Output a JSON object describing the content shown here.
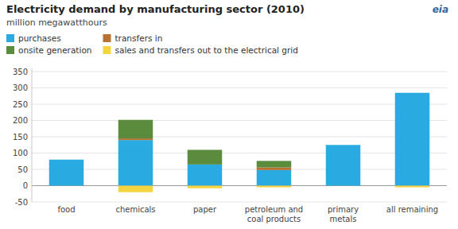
{
  "chart_data": {
    "type": "bar",
    "stacked": true,
    "title": "Electricity demand by manufacturing sector  (2010)",
    "subtitle": "million megawatthours",
    "annotations": [
      "eia"
    ],
    "categories": [
      "food",
      "chemicals",
      "paper",
      "petroleum and\ncoal products",
      "primary\nmetals",
      "all remaining"
    ],
    "series": [
      {
        "name": "purchases",
        "color": "#29ABE2",
        "values": [
          80,
          140,
          65,
          48,
          125,
          285
        ]
      },
      {
        "name": "transfers in",
        "color": "#B87333",
        "values": [
          0,
          5,
          0,
          8,
          0,
          0
        ]
      },
      {
        "name": "onsite generation",
        "color": "#5B8C3E",
        "values": [
          0,
          57,
          45,
          20,
          0,
          0
        ]
      },
      {
        "name": "sales and transfers out to the electrical grid",
        "color": "#F5D53F",
        "values": [
          0,
          -20,
          -8,
          -5,
          0,
          -5
        ]
      }
    ],
    "ylim": [
      -50,
      360
    ],
    "yticks": [
      -50,
      0,
      50,
      100,
      150,
      200,
      250,
      300,
      350
    ],
    "grid": true,
    "legend": "upper left"
  }
}
